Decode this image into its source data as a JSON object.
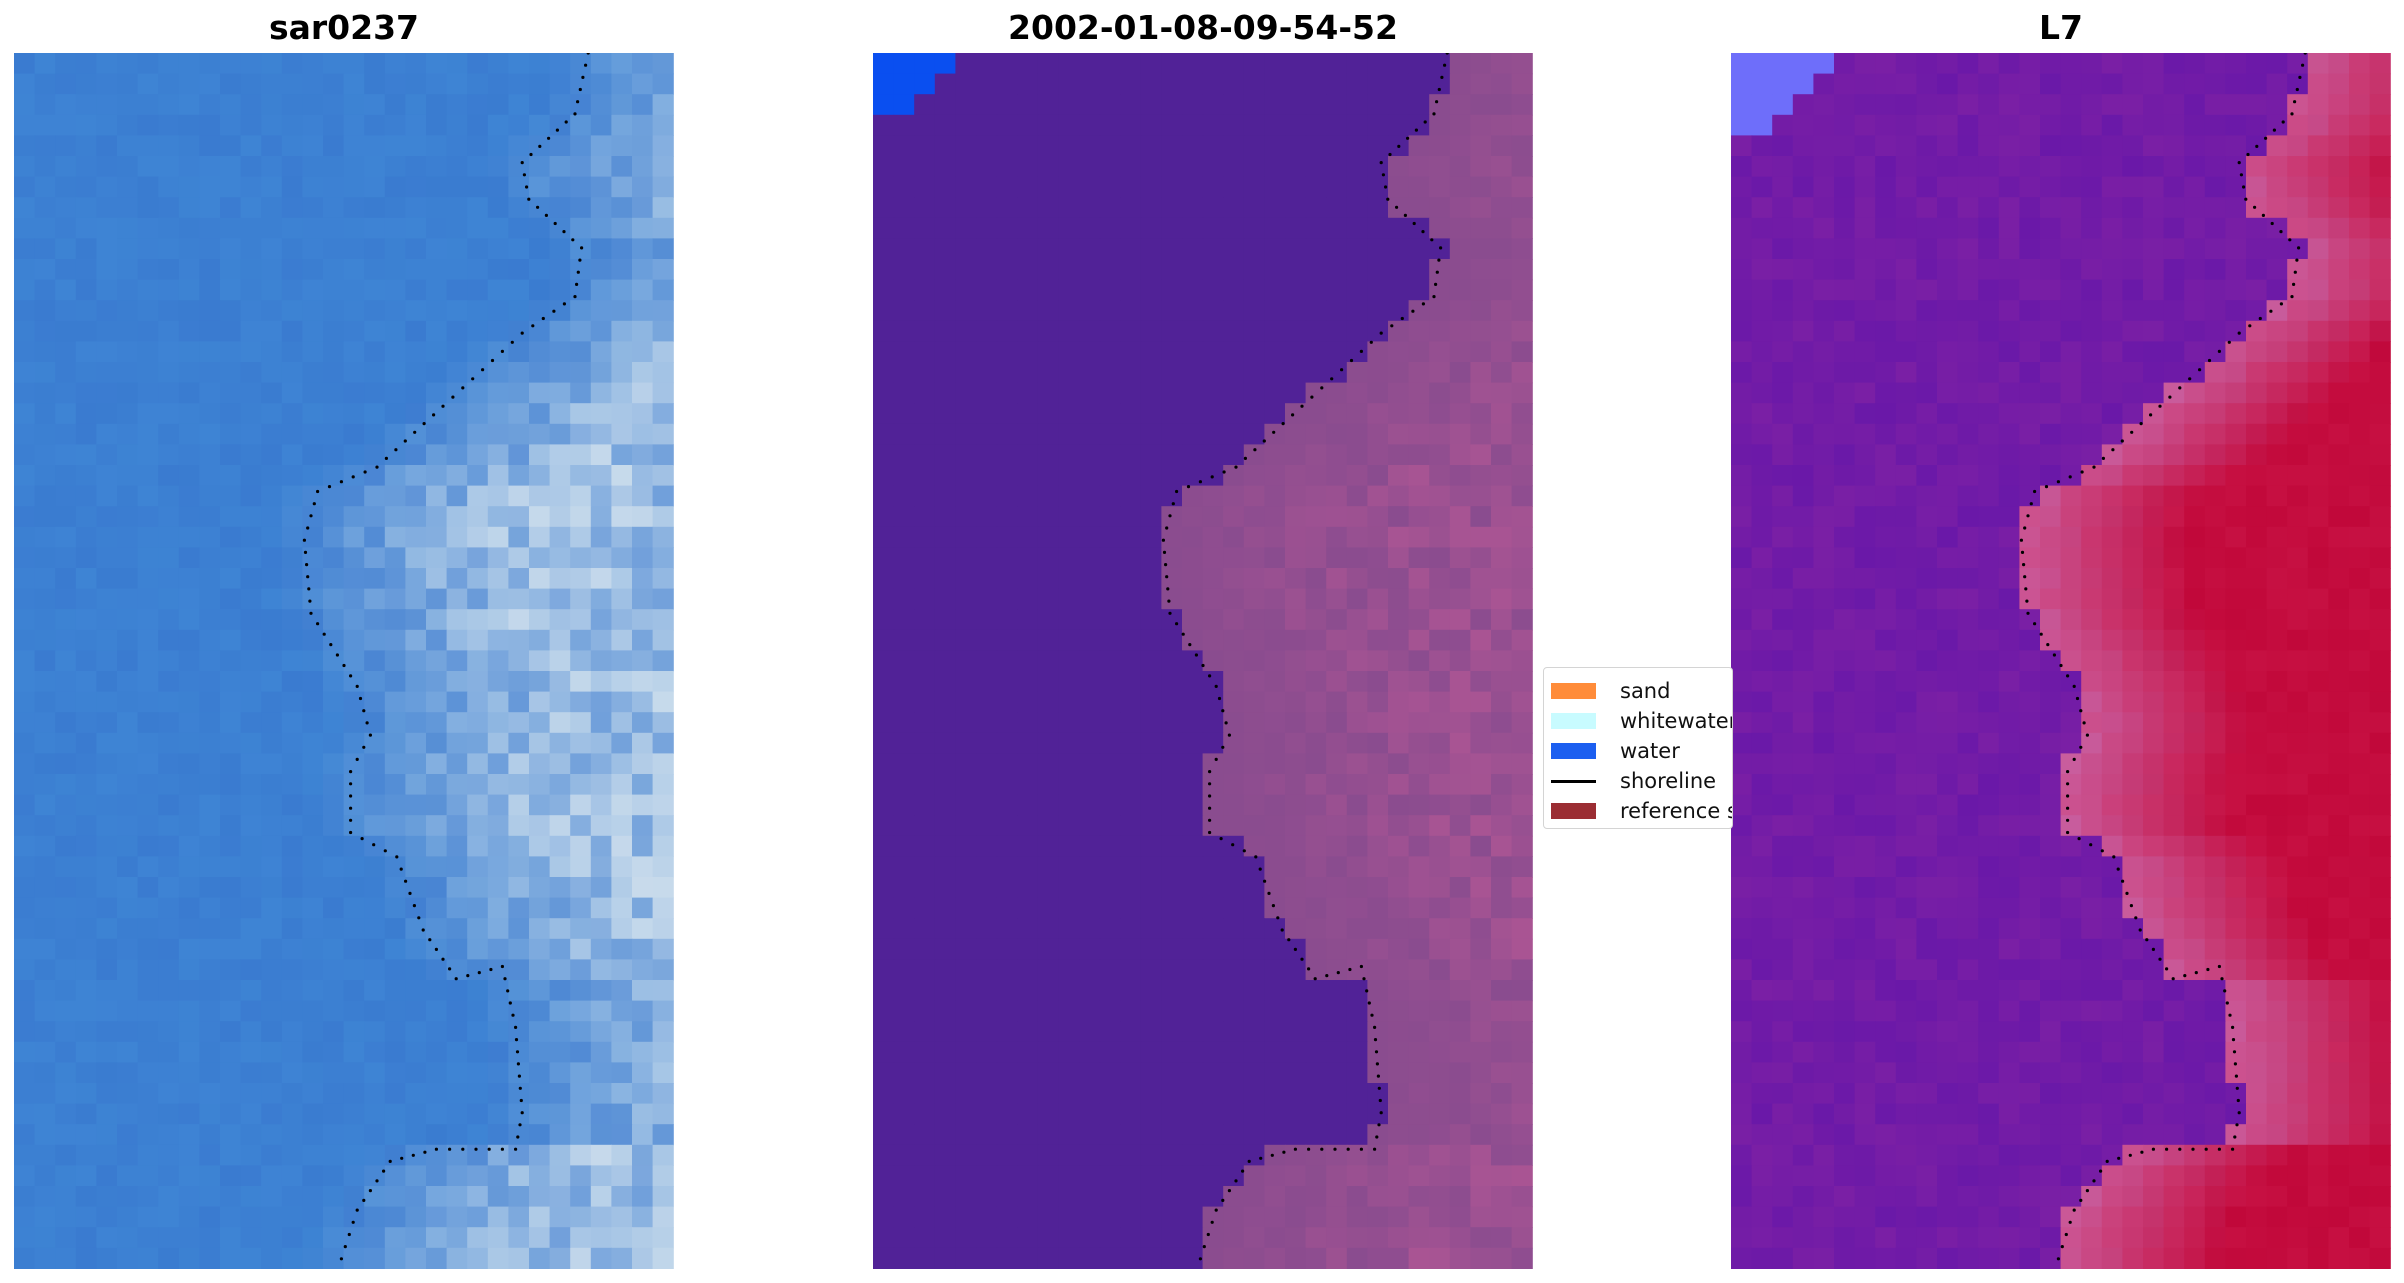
{
  "panels": [
    {
      "title": "sar0237",
      "kind": "rgb"
    },
    {
      "title": "2002-01-08-09-54-52",
      "kind": "classified"
    },
    {
      "title": "L7",
      "kind": "index"
    }
  ],
  "legend": {
    "items": [
      {
        "label": "sand",
        "type": "patch",
        "color": "#ff8c3a"
      },
      {
        "label": "whitewater",
        "type": "patch",
        "color": "#c8fbff"
      },
      {
        "label": "water",
        "type": "patch",
        "color": "#1c5ff0"
      },
      {
        "label": "shoreline",
        "type": "line",
        "color": "#000000"
      },
      {
        "label": "reference sl",
        "type": "patch",
        "color": "#9b2d33"
      }
    ]
  },
  "colors": {
    "water_rgb": "#3a7bd0",
    "ocean_overlay": "#512297",
    "land_purple": "#8a4c8f",
    "index_low": "#7a1fa5",
    "index_high": "#c1083a",
    "water_class": "#0a4ff0"
  }
}
